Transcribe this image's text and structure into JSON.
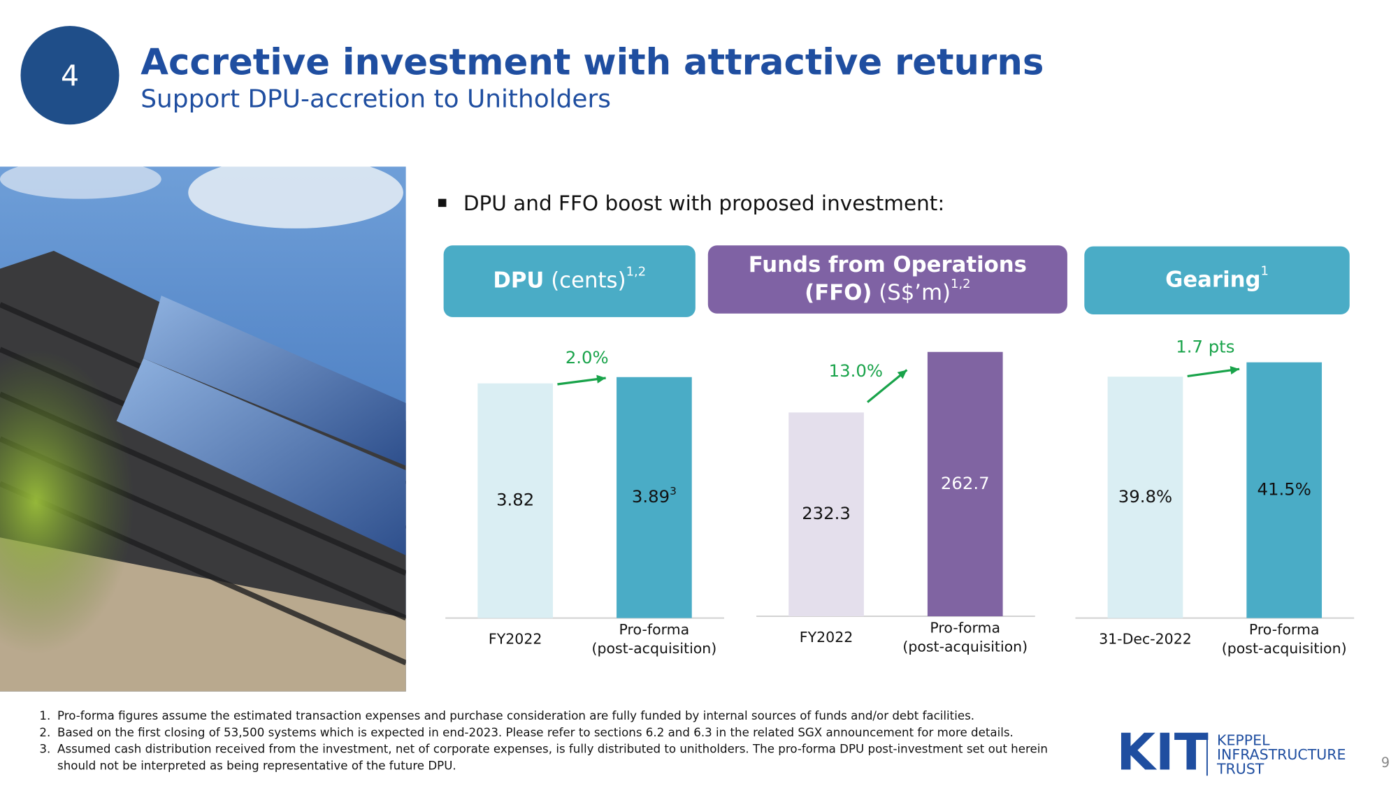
{
  "slide_number": "4",
  "title": "Accretive investment with attractive returns",
  "subtitle": "Support DPU-accretion to Unitholders",
  "bullet": "DPU and FFO boost with proposed investment:",
  "chart_data": [
    {
      "type": "bar",
      "title_lines": [
        "DPU"
      ],
      "title_unit": "(cents)",
      "title_note": "1,2",
      "categories": [
        "FY2022",
        "Pro-forma\n(post-acquisition)"
      ],
      "values": [
        3.82,
        3.89
      ],
      "value_notes": [
        null,
        "3"
      ],
      "colors": [
        "#daeef3",
        "#4aacc6"
      ],
      "header_color": "#4aacc6",
      "change_label": "2.0%",
      "ylim": [
        1.2,
        4.3
      ]
    },
    {
      "type": "bar",
      "title_lines": [
        "Funds from Operations",
        "(FFO)"
      ],
      "title_unit": "(S$’m)",
      "title_note": "1,2",
      "categories": [
        "FY2022",
        "Pro-forma\n(post-acquisition)"
      ],
      "values": [
        232.3,
        262.7
      ],
      "colors": [
        "#e4dfec",
        "#8064a2"
      ],
      "header_color": "#7f62a4",
      "change_label": "13.0%",
      "ylim": [
        130,
        268.5
      ]
    },
    {
      "type": "bar",
      "title_lines": [
        "Gearing"
      ],
      "title_note": "1",
      "categories": [
        "31-Dec-2022",
        "Pro-forma\n(post-acquisition)"
      ],
      "values": [
        39.8,
        41.5
      ],
      "value_labels": [
        "39.8%",
        "41.5%"
      ],
      "colors": [
        "#daeef3",
        "#4aacc6"
      ],
      "header_color": "#4aacc6",
      "change_label": "1.7 pts",
      "ylim": [
        11.2,
        44.1
      ]
    }
  ],
  "footnotes": [
    {
      "marker": "1.",
      "lines": [
        "Pro-forma figures assume the estimated transaction expenses and purchase consideration are fully funded by internal sources of funds and/or debt facilities."
      ]
    },
    {
      "marker": "2.",
      "lines": [
        "Based on the first closing of 53,500 systems which is expected in end-2023. Please refer to sections 6.2 and 6.3 in the related SGX announcement for more details."
      ]
    },
    {
      "marker": "3.",
      "lines": [
        "Assumed cash distribution received from the investment, net of corporate expenses, is fully distributed to unitholders. The pro-forma DPU post-investment set out herein",
        "should not be interpreted as being representative of the future DPU."
      ]
    }
  ],
  "logo": {
    "mark": "KIT",
    "lines": [
      "KEPPEL",
      "INFRASTRUCTURE",
      "TRUST"
    ]
  },
  "page_number": "9"
}
